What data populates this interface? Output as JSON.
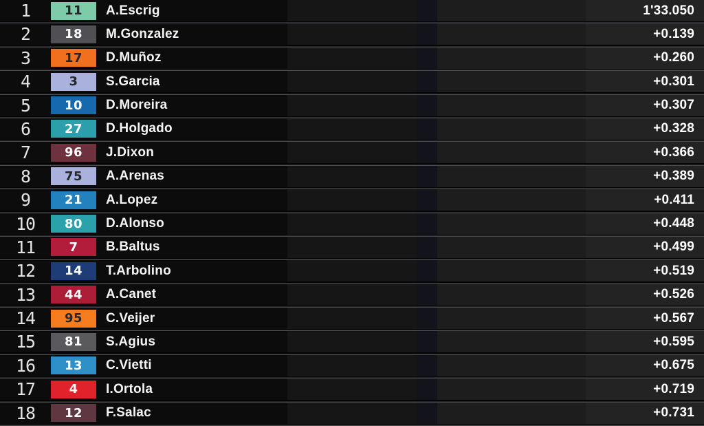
{
  "leaderboard": {
    "rows": [
      {
        "position": "1",
        "rider_number": "11",
        "rider_name": "A.Escrig",
        "time": "1'33.050",
        "badge_bg": "#7ecbaa",
        "badge_fg": "#222428"
      },
      {
        "position": "2",
        "rider_number": "18",
        "rider_name": "M.Gonzalez",
        "time": "+0.139",
        "badge_bg": "#4f4f54",
        "badge_fg": "#ffffff"
      },
      {
        "position": "3",
        "rider_number": "17",
        "rider_name": "D.Muñoz",
        "time": "+0.260",
        "badge_bg": "#f0701f",
        "badge_fg": "#26262a"
      },
      {
        "position": "4",
        "rider_number": "3",
        "rider_name": "S.Garcia",
        "time": "+0.301",
        "badge_bg": "#a9b1dc",
        "badge_fg": "#26262a"
      },
      {
        "position": "5",
        "rider_number": "10",
        "rider_name": "D.Moreira",
        "time": "+0.307",
        "badge_bg": "#1569ac",
        "badge_fg": "#ffffff"
      },
      {
        "position": "6",
        "rider_number": "27",
        "rider_name": "D.Holgado",
        "time": "+0.328",
        "badge_bg": "#2b9fac",
        "badge_fg": "#ffffff"
      },
      {
        "position": "7",
        "rider_number": "96",
        "rider_name": "J.Dixon",
        "time": "+0.366",
        "badge_bg": "#6e323e",
        "badge_fg": "#ffffff"
      },
      {
        "position": "8",
        "rider_number": "75",
        "rider_name": "A.Arenas",
        "time": "+0.389",
        "badge_bg": "#a9b1dc",
        "badge_fg": "#26262a"
      },
      {
        "position": "9",
        "rider_number": "21",
        "rider_name": "A.Lopez",
        "time": "+0.411",
        "badge_bg": "#2382be",
        "badge_fg": "#ffffff"
      },
      {
        "position": "10",
        "rider_number": "80",
        "rider_name": "D.Alonso",
        "time": "+0.448",
        "badge_bg": "#2aa1ab",
        "badge_fg": "#ffffff"
      },
      {
        "position": "11",
        "rider_number": "7",
        "rider_name": "B.Baltus",
        "time": "+0.499",
        "badge_bg": "#b11d3a",
        "badge_fg": "#ffffff"
      },
      {
        "position": "12",
        "rider_number": "14",
        "rider_name": "T.Arbolino",
        "time": "+0.519",
        "badge_bg": "#1e3c78",
        "badge_fg": "#ffffff"
      },
      {
        "position": "13",
        "rider_number": "44",
        "rider_name": "A.Canet",
        "time": "+0.526",
        "badge_bg": "#ac1d38",
        "badge_fg": "#ffffff"
      },
      {
        "position": "14",
        "rider_number": "95",
        "rider_name": "C.Veijer",
        "time": "+0.567",
        "badge_bg": "#f57d20",
        "badge_fg": "#26262a"
      },
      {
        "position": "15",
        "rider_number": "81",
        "rider_name": "S.Agius",
        "time": "+0.595",
        "badge_bg": "#5a5a5e",
        "badge_fg": "#ffffff"
      },
      {
        "position": "16",
        "rider_number": "13",
        "rider_name": "C.Vietti",
        "time": "+0.675",
        "badge_bg": "#2e90c7",
        "badge_fg": "#ffffff"
      },
      {
        "position": "17",
        "rider_number": "4",
        "rider_name": "I.Ortola",
        "time": "+0.719",
        "badge_bg": "#e0222a",
        "badge_fg": "#ffffff"
      },
      {
        "position": "18",
        "rider_number": "12",
        "rider_name": "F.Salac",
        "time": "+0.731",
        "badge_bg": "#5e3741",
        "badge_fg": "#ffffff"
      }
    ],
    "colors": {
      "row_main_bg": "#0c0c0c",
      "sector1_bg": "#161616",
      "sector2_bg": "#13131b",
      "sector3_bg": "#1d1d1d",
      "gap_bg": "#232323",
      "divider": "#4a4a4f",
      "leader_time_color": "#ffffff"
    }
  }
}
